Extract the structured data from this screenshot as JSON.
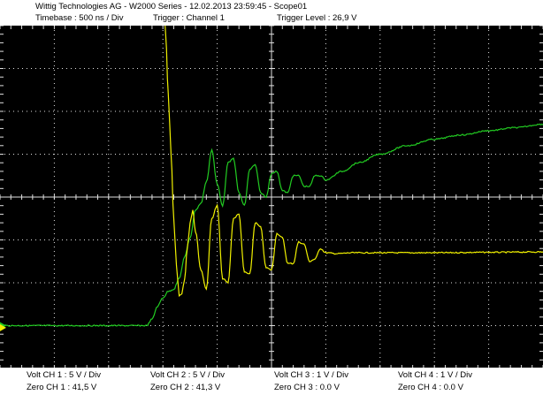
{
  "header": {
    "title": "Wittig Technologies AG - W2000 Series  -  12.02.2013 23:59:45 - Scope01",
    "timebase": "Timebase : 500 ns / Div",
    "trigger": "Trigger : Channel 1",
    "trigger_level": "Trigger Level : 26,9 V"
  },
  "footer": {
    "ch1_volt": "Volt CH 1 : 5 V / Div",
    "ch1_zero": "Zero CH 1 : 41,5 V",
    "ch2_volt": "Volt CH 2 : 5 V / Div",
    "ch2_zero": "Zero CH 2 : 41,3 V",
    "ch3_volt": "Volt CH 3 : 1 V / Div",
    "ch3_zero": "Zero CH 3 : 0.0 V",
    "ch4_volt": "Volt CH 4 : 1 V / Div",
    "ch4_zero": "Zero CH 4 : 0.0 V"
  },
  "colors": {
    "background": "#000000",
    "grid": "#e0e0e0",
    "ch1": "#f0f000",
    "ch2": "#22cc22"
  },
  "chart_data": {
    "type": "line",
    "x_divisions": 10,
    "y_divisions": 8,
    "series": [
      {
        "channel": "CH 1",
        "color": "#f0f000",
        "x": [
          0,
          1.0,
          2.0,
          2.9,
          3.0,
          3.05,
          3.1,
          3.15,
          3.2,
          3.25,
          3.3,
          3.35,
          3.4,
          3.45,
          3.5,
          3.55,
          3.6,
          3.7,
          3.8,
          3.9,
          4.0,
          4.1,
          4.2,
          4.3,
          4.4,
          4.5,
          4.6,
          4.7,
          4.8,
          4.9,
          5.0,
          5.1,
          5.2,
          5.3,
          5.4,
          5.5,
          5.6,
          5.7,
          5.8,
          5.9,
          6.0,
          6.2,
          6.5,
          7.0,
          8.0,
          9.0,
          10.0
        ],
        "y": [
          5.45,
          5.44,
          5.43,
          5.3,
          4.8,
          3.8,
          2.4,
          1.0,
          -0.5,
          -1.6,
          -2.3,
          -2.25,
          -1.9,
          -1.2,
          -0.6,
          -0.3,
          -0.8,
          -1.7,
          -2.15,
          -0.5,
          -0.2,
          -1.9,
          -2.0,
          -0.5,
          -0.4,
          -1.75,
          -1.8,
          -0.6,
          -0.7,
          -1.65,
          -1.7,
          -0.85,
          -0.95,
          -1.55,
          -1.55,
          -1.05,
          -1.1,
          -1.5,
          -1.45,
          -1.2,
          -1.3,
          -1.32,
          -1.3,
          -1.3,
          -1.3,
          -1.29,
          -1.28
        ]
      },
      {
        "channel": "CH 2",
        "color": "#22cc22",
        "x": [
          0,
          2.7,
          2.8,
          2.9,
          3.0,
          3.1,
          3.2,
          3.3,
          3.4,
          3.5,
          3.6,
          3.7,
          3.8,
          3.9,
          4.0,
          4.1,
          4.2,
          4.3,
          4.4,
          4.5,
          4.6,
          4.7,
          4.8,
          4.9,
          5.0,
          5.1,
          5.2,
          5.3,
          5.4,
          5.5,
          5.6,
          5.7,
          5.8,
          5.9,
          6.0,
          6.3,
          6.6,
          7.0,
          7.5,
          8.0,
          8.5,
          9.0,
          9.5,
          10.0
        ],
        "y": [
          -3.0,
          -3.0,
          -2.85,
          -2.55,
          -2.35,
          -2.2,
          -2.15,
          -1.9,
          -1.4,
          -0.95,
          -0.3,
          -0.15,
          0.35,
          1.1,
          0.3,
          -0.2,
          0.8,
          0.9,
          0.1,
          -0.2,
          0.65,
          0.75,
          0.1,
          0.0,
          0.55,
          0.6,
          0.15,
          0.1,
          0.5,
          0.5,
          0.25,
          0.25,
          0.5,
          0.5,
          0.4,
          0.6,
          0.8,
          1.0,
          1.2,
          1.35,
          1.45,
          1.55,
          1.62,
          1.7
        ]
      }
    ],
    "ch1_ground_marker": "left-middle",
    "ch2_ground_marker": "left-middle"
  }
}
